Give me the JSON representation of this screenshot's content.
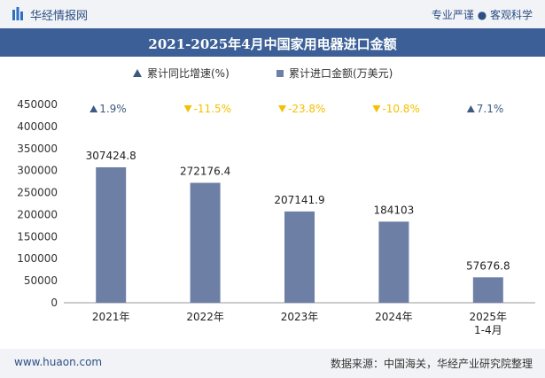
{
  "header": {
    "brand": "华经情报网",
    "slogan": "专业严谨 ● 客观科学"
  },
  "legend": {
    "growth_label": "累计同比增速(%)",
    "value_label": "累计进口金额(万美元)"
  },
  "footer": {
    "site": "www.huaon.com",
    "source": "数据来源：中国海关，华经产业研究院整理"
  },
  "colors": {
    "bar": "#6e7fa6",
    "up": "#3e5a80",
    "down": "#f5c000",
    "title_bg": "#3b5f96"
  },
  "chart_data": {
    "type": "bar",
    "title": "2021-2025年4月中国家用电器进口金额",
    "categories": [
      "2021年",
      "2022年",
      "2023年",
      "2024年",
      "2025年\n1-4月"
    ],
    "series": [
      {
        "name": "累计进口金额(万美元)",
        "values": [
          307424.8,
          272176.4,
          207141.9,
          184103,
          57676.8
        ]
      },
      {
        "name": "累计同比增速(%)",
        "values": [
          1.9,
          -11.5,
          -23.8,
          -10.8,
          7.1
        ]
      }
    ],
    "value_labels": [
      "307424.8",
      "272176.4",
      "207141.9",
      "184103",
      "57676.8"
    ],
    "growth_labels": [
      "1.9%",
      "-11.5%",
      "-23.8%",
      "-10.8%",
      "7.1%"
    ],
    "ylim": [
      0,
      450000
    ],
    "yticks": [
      0,
      50000,
      100000,
      150000,
      200000,
      250000,
      300000,
      350000,
      400000,
      450000
    ],
    "xlabel": "",
    "ylabel": ""
  }
}
